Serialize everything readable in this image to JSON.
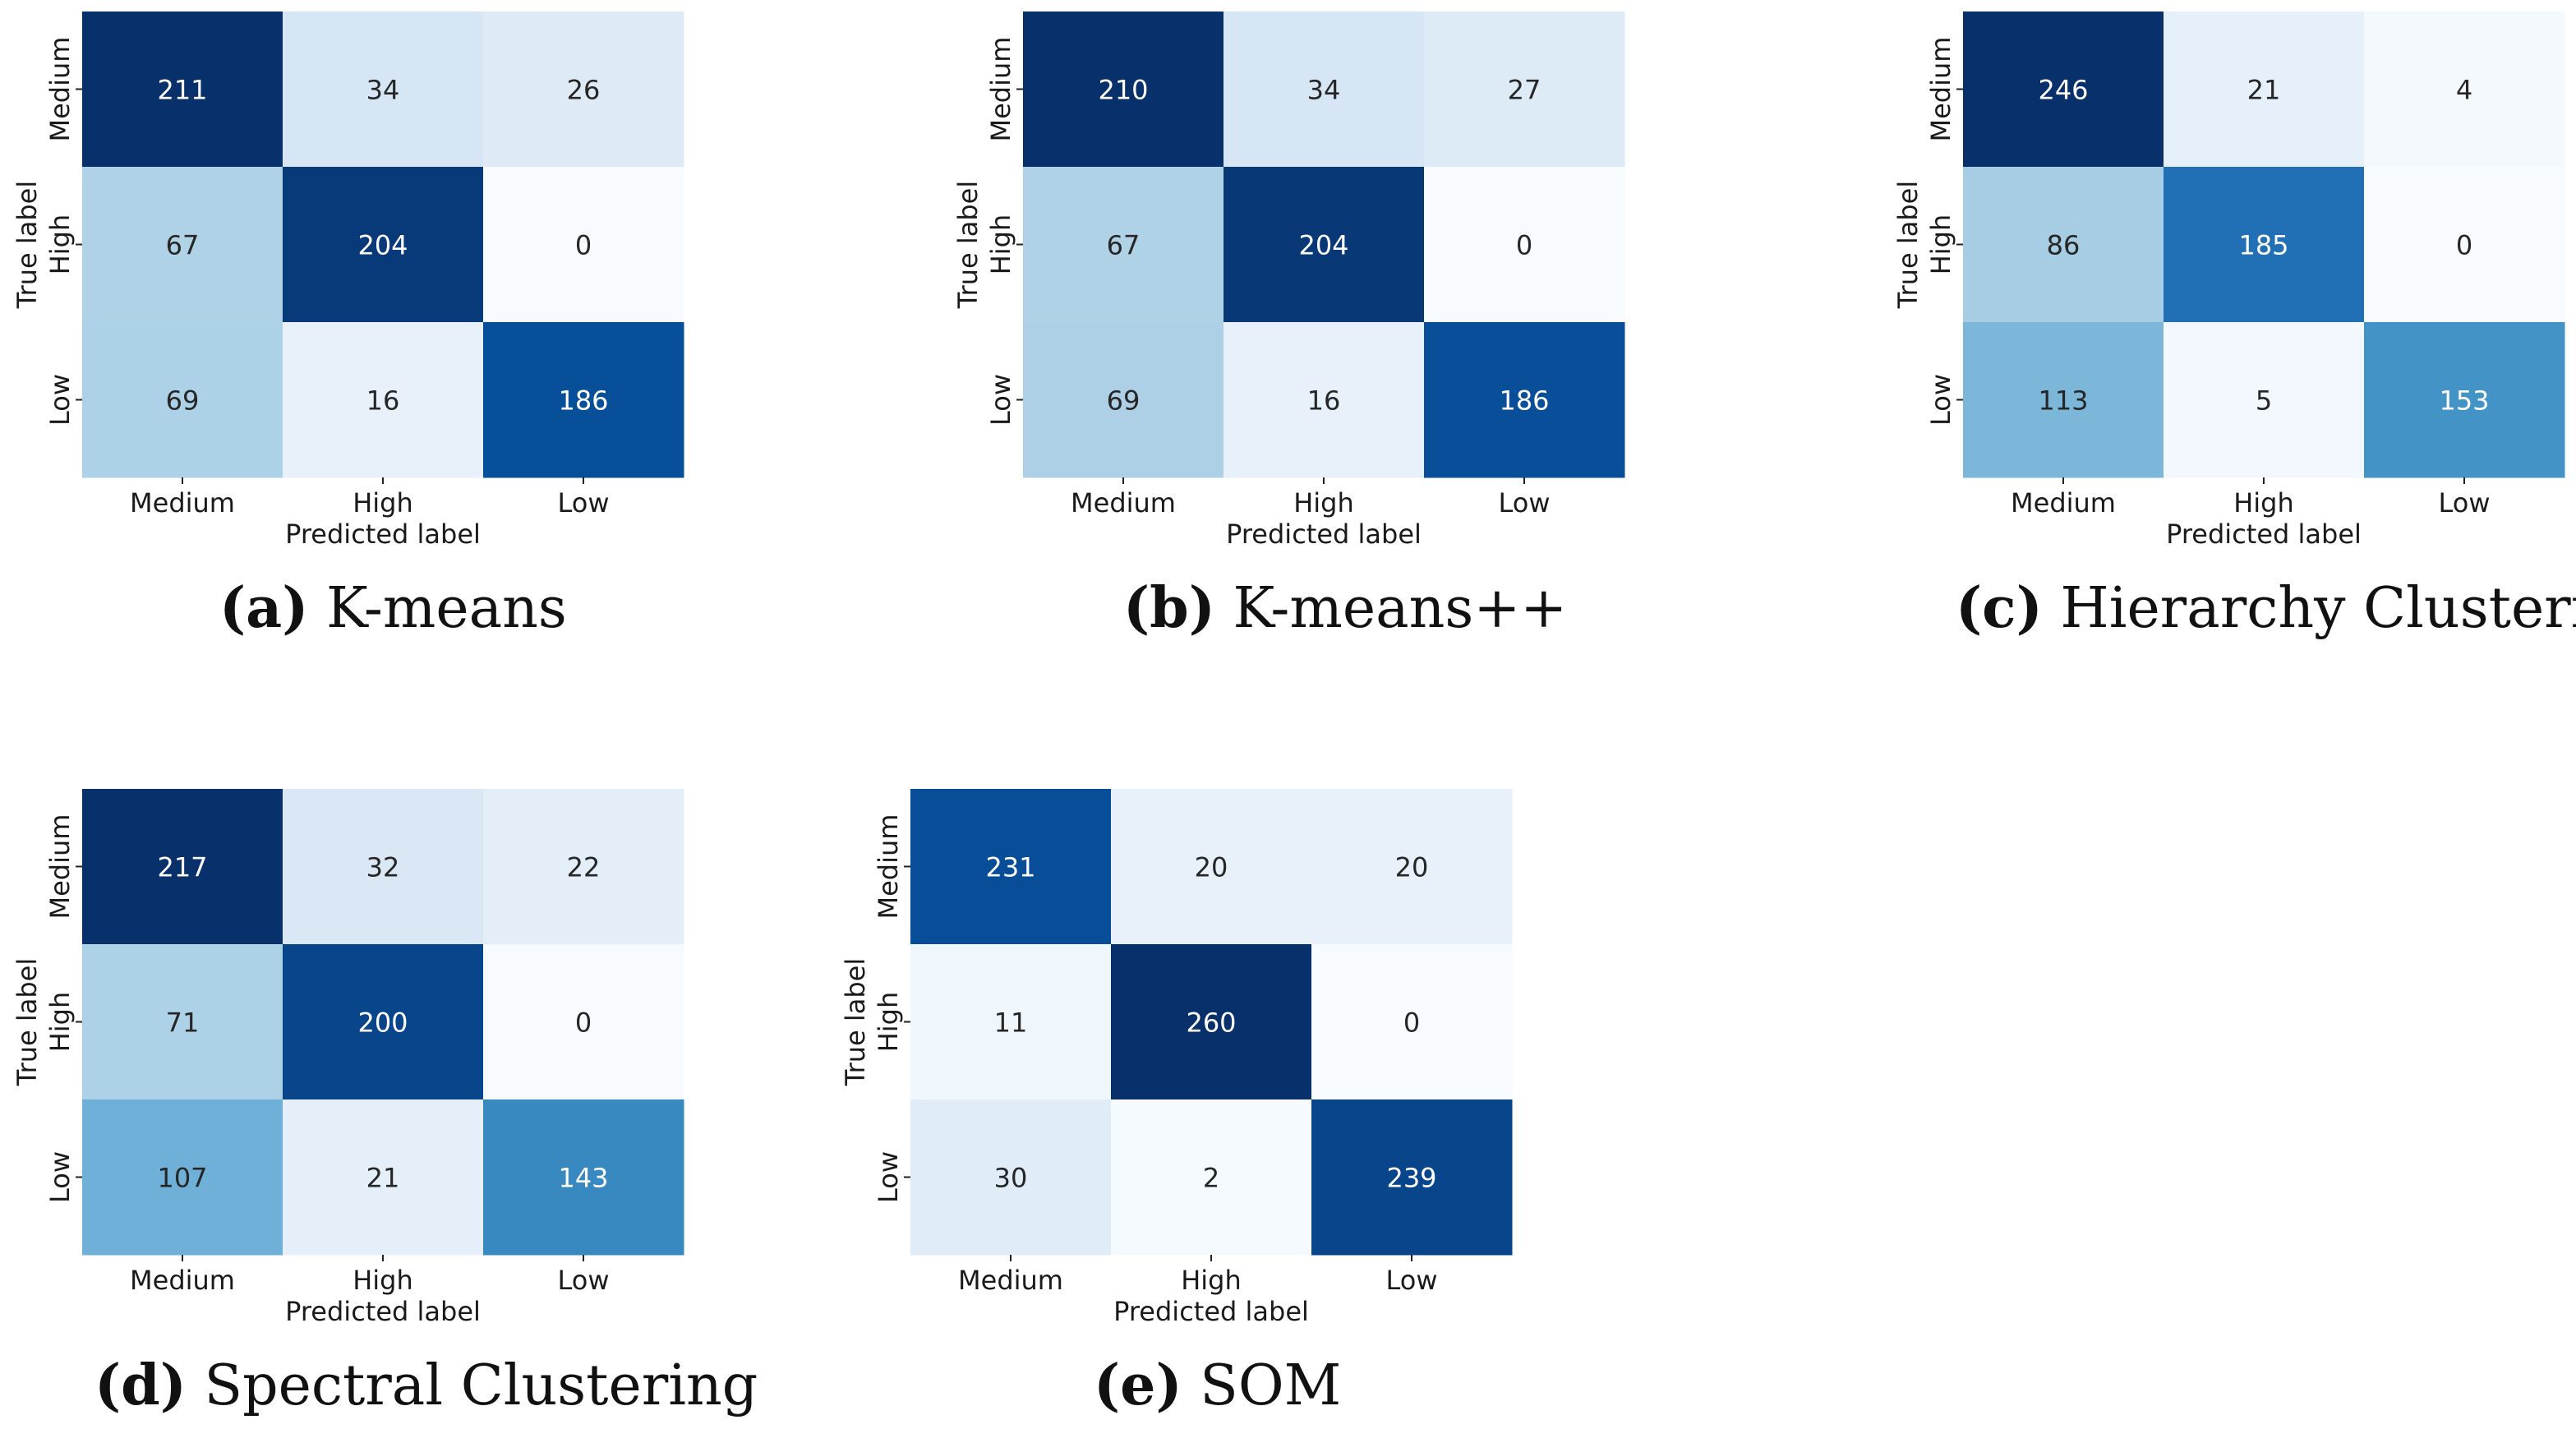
{
  "figure": {
    "row_labels": [
      "Medium",
      "High",
      "Low"
    ],
    "col_labels": [
      "Medium",
      "High",
      "Low"
    ],
    "xlabel": "Predicted label",
    "ylabel": "True label",
    "colormap": {
      "name": "Blues",
      "stops": [
        "#f7fbff",
        "#deebf7",
        "#c6dbef",
        "#9ecae1",
        "#6baed6",
        "#4292c6",
        "#2171b5",
        "#08519c",
        "#08306b"
      ],
      "text_dark": "#262626",
      "text_light": "#ffffff"
    }
  },
  "panels": [
    {
      "letter": "(a)",
      "name": "K-means"
    },
    {
      "letter": "(b)",
      "name": "K-means++"
    },
    {
      "letter": "(c)",
      "name": "Hierarchy Clustering"
    },
    {
      "letter": "(d)",
      "name": "Spectral Clustering"
    },
    {
      "letter": "(e)",
      "name": "SOM"
    }
  ],
  "chart_data": [
    {
      "type": "heatmap",
      "title": "(a) K-means",
      "xlabel": "Predicted label",
      "ylabel": "True label",
      "x": [
        "Medium",
        "High",
        "Low"
      ],
      "y": [
        "Medium",
        "High",
        "Low"
      ],
      "values": [
        [
          211,
          34,
          26
        ],
        [
          67,
          204,
          0
        ],
        [
          69,
          16,
          186
        ]
      ]
    },
    {
      "type": "heatmap",
      "title": "(b) K-means++",
      "xlabel": "Predicted label",
      "ylabel": "True label",
      "x": [
        "Medium",
        "High",
        "Low"
      ],
      "y": [
        "Medium",
        "High",
        "Low"
      ],
      "values": [
        [
          210,
          34,
          27
        ],
        [
          67,
          204,
          0
        ],
        [
          69,
          16,
          186
        ]
      ]
    },
    {
      "type": "heatmap",
      "title": "(c) Hierarchy Clustering",
      "xlabel": "Predicted label",
      "ylabel": "True label",
      "x": [
        "Medium",
        "High",
        "Low"
      ],
      "y": [
        "Medium",
        "High",
        "Low"
      ],
      "values": [
        [
          246,
          21,
          4
        ],
        [
          86,
          185,
          0
        ],
        [
          113,
          5,
          153
        ]
      ]
    },
    {
      "type": "heatmap",
      "title": "(d) Spectral Clustering",
      "xlabel": "Predicted label",
      "ylabel": "True label",
      "x": [
        "Medium",
        "High",
        "Low"
      ],
      "y": [
        "Medium",
        "High",
        "Low"
      ],
      "values": [
        [
          217,
          32,
          22
        ],
        [
          71,
          200,
          0
        ],
        [
          107,
          21,
          143
        ]
      ]
    },
    {
      "type": "heatmap",
      "title": "(e) SOM",
      "xlabel": "Predicted label",
      "ylabel": "True label",
      "x": [
        "Medium",
        "High",
        "Low"
      ],
      "y": [
        "Medium",
        "High",
        "Low"
      ],
      "values": [
        [
          231,
          20,
          20
        ],
        [
          11,
          260,
          0
        ],
        [
          30,
          2,
          239
        ]
      ]
    }
  ]
}
